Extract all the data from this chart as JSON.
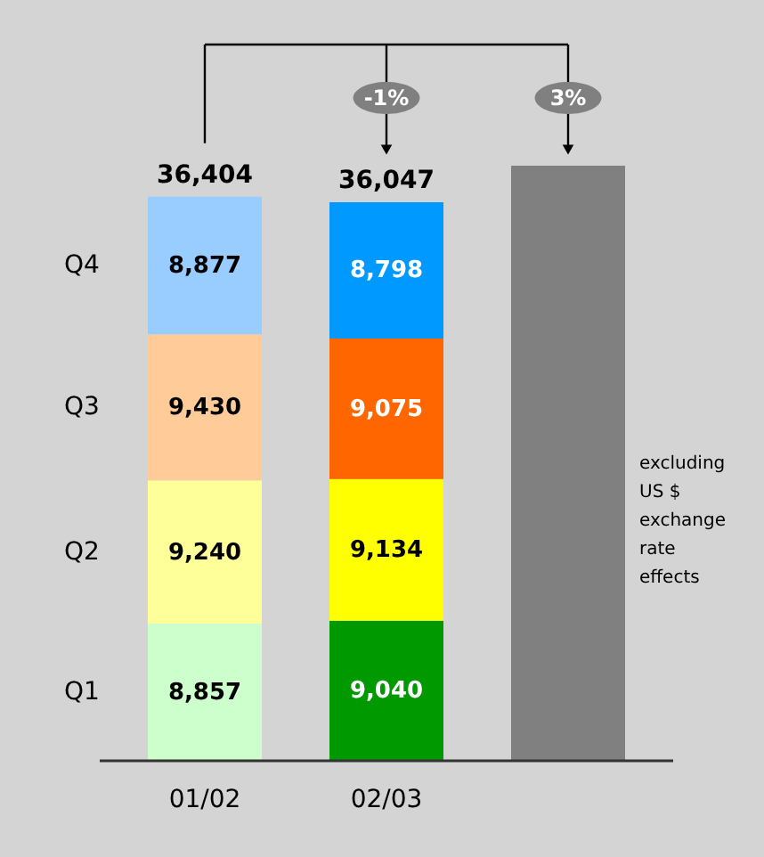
{
  "chart_data": {
    "type": "bar",
    "stacked": true,
    "categories": [
      "01/02",
      "02/03",
      null
    ],
    "series": [
      {
        "name": "Q1",
        "colors": [
          "#ccffcc",
          "#009900",
          "#009900"
        ],
        "values": [
          8857,
          9040,
          null
        ],
        "value_labels": [
          "8,857",
          "9,040",
          null
        ]
      },
      {
        "name": "Q2",
        "colors": [
          "#ffff99",
          "#ffff00",
          "#ffff00"
        ],
        "values": [
          9240,
          9134,
          null
        ],
        "value_labels": [
          "9,240",
          "9,134",
          null
        ]
      },
      {
        "name": "Q3",
        "colors": [
          "#ffcc99",
          "#ff6600",
          "#ff6600"
        ],
        "values": [
          9430,
          9075,
          null
        ],
        "value_labels": [
          "9,430",
          "9,075",
          null
        ]
      },
      {
        "name": "Q4",
        "colors": [
          "#99ccff",
          "#0099ff",
          "#0099ff"
        ],
        "values": [
          8877,
          8798,
          null
        ],
        "value_labels": [
          "8,877",
          "8,798",
          null
        ]
      },
      {
        "color": "#808080",
        "values": [
          null,
          null,
          38400
        ]
      }
    ],
    "totals": [
      "36,404",
      "36,047",
      null
    ],
    "annotations": [
      "-1%",
      "3%",
      "excluding US $ exchange rate effects"
    ]
  }
}
